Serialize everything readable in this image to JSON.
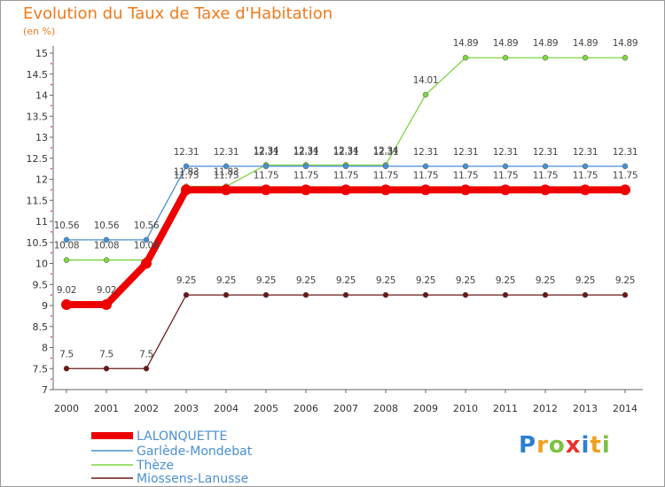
{
  "chart_data": {
    "type": "line",
    "title": "Evolution du Taux de Taxe d'Habitation",
    "subtitle": "(en %)",
    "xlabel": "",
    "ylabel": "(en %)",
    "ylim": [
      7,
      15
    ],
    "yticks": [
      "7",
      "7.5",
      "8",
      "8.5",
      "9",
      "9.5",
      "10",
      "10.5",
      "11",
      "11.5",
      "12",
      "12.5",
      "13",
      "13.5",
      "14",
      "14.5",
      "15"
    ],
    "categories": [
      "2000",
      "2001",
      "2002",
      "2003",
      "2004",
      "2005",
      "2006",
      "2007",
      "2008",
      "2009",
      "2010",
      "2011",
      "2012",
      "2013",
      "2014"
    ],
    "series": [
      {
        "name": "LALONQUETTE",
        "color": "#ee0000",
        "values": [
          9.02,
          9.02,
          10.0,
          11.75,
          11.75,
          11.75,
          11.75,
          11.75,
          11.75,
          11.75,
          11.75,
          11.75,
          11.75,
          11.75,
          11.75
        ],
        "labels": [
          "9.02",
          "9.02",
          "",
          "11.75",
          "11.75",
          "11.75",
          "11.75",
          "11.75",
          "11.75",
          "11.75",
          "11.75",
          "11.75",
          "11.75",
          "11.75",
          "11.75"
        ]
      },
      {
        "name": "Garlède-Mondebat",
        "color": "#4a8fd0",
        "values": [
          10.56,
          10.56,
          10.56,
          12.31,
          12.31,
          12.31,
          12.31,
          12.31,
          12.31,
          12.31,
          12.31,
          12.31,
          12.31,
          12.31,
          12.31
        ],
        "labels": [
          "10.56",
          "10.56",
          "10.56",
          "12.31",
          "12.31",
          "12.31",
          "12.31",
          "12.31",
          "12.31",
          "12.31",
          "12.31",
          "12.31",
          "12.31",
          "12.31",
          "12.31"
        ]
      },
      {
        "name": "Thèze",
        "color": "#7dd642",
        "values": [
          10.08,
          10.08,
          10.08,
          11.83,
          11.83,
          12.34,
          12.34,
          12.34,
          12.34,
          14.01,
          14.89,
          14.89,
          14.89,
          14.89,
          14.89
        ],
        "labels": [
          "10.08",
          "10.08",
          "10.08",
          "11.83",
          "11.83",
          "12.34",
          "12.34",
          "12.34",
          "12.34",
          "14.01",
          "14.89",
          "14.89",
          "14.89",
          "14.89",
          "14.89"
        ]
      },
      {
        "name": "Miossens-Lanusse",
        "color": "#6a1818",
        "values": [
          7.5,
          7.5,
          7.5,
          9.25,
          9.25,
          9.25,
          9.25,
          9.25,
          9.25,
          9.25,
          9.25,
          9.25,
          9.25,
          9.25,
          9.25
        ],
        "labels": [
          "7.5",
          "7.5",
          "7.5",
          "9.25",
          "9.25",
          "9.25",
          "9.25",
          "9.25",
          "9.25",
          "9.25",
          "9.25",
          "9.25",
          "9.25",
          "9.25",
          "9.25"
        ]
      }
    ],
    "legend_position": "bottom-left",
    "grid": false
  },
  "branding": {
    "logo_letters": [
      "P",
      "r",
      "o",
      "x",
      "i",
      "t",
      "i"
    ],
    "logo_colors": [
      "#2e7fd1",
      "#f0a020",
      "#7cc242",
      "#e8322d",
      "#2e7fd1",
      "#f0a020",
      "#7cc242"
    ]
  }
}
